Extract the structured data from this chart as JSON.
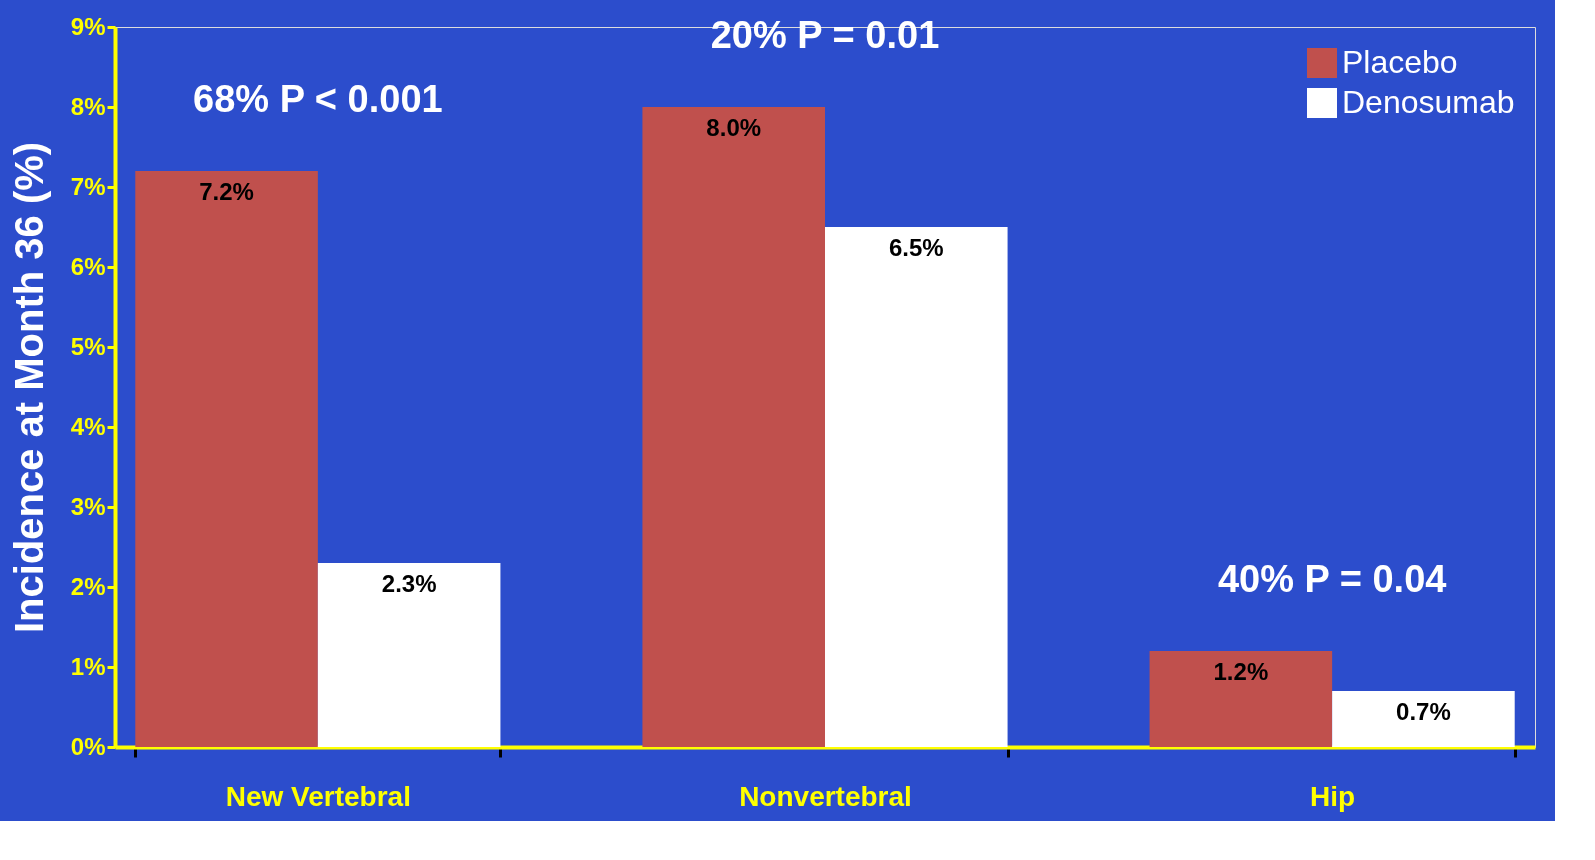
{
  "chart_data": {
    "type": "bar",
    "ylabel": "Incidence at Month 36 (%)",
    "categories": [
      "New Vertebral",
      "Nonvertebral",
      "Hip"
    ],
    "series": [
      {
        "name": "Placebo",
        "color": "#c0504d",
        "values": [
          7.2,
          8.0,
          1.2
        ],
        "value_labels": [
          "7.2%",
          "8.0%",
          "1.2%"
        ]
      },
      {
        "name": "Denosumab",
        "color": "#ffffff",
        "values": [
          2.3,
          6.5,
          0.7
        ],
        "value_labels": [
          "2.3%",
          "6.5%",
          "0.7%"
        ]
      }
    ],
    "ylim": [
      0,
      9
    ],
    "yticks": [
      {
        "value": 0,
        "label": "0%"
      },
      {
        "value": 1,
        "label": "1%"
      },
      {
        "value": 2,
        "label": "2%"
      },
      {
        "value": 3,
        "label": "3%"
      },
      {
        "value": 4,
        "label": "4%"
      },
      {
        "value": 5,
        "label": "5%"
      },
      {
        "value": 6,
        "label": "6%"
      },
      {
        "value": 7,
        "label": "7%"
      },
      {
        "value": 8,
        "label": "8%"
      },
      {
        "value": 9,
        "label": "9%"
      }
    ],
    "annotations": [
      "68% P < 0.001",
      "20% P = 0.01",
      "40% P = 0.04"
    ],
    "grid": false,
    "legend": "top right"
  }
}
